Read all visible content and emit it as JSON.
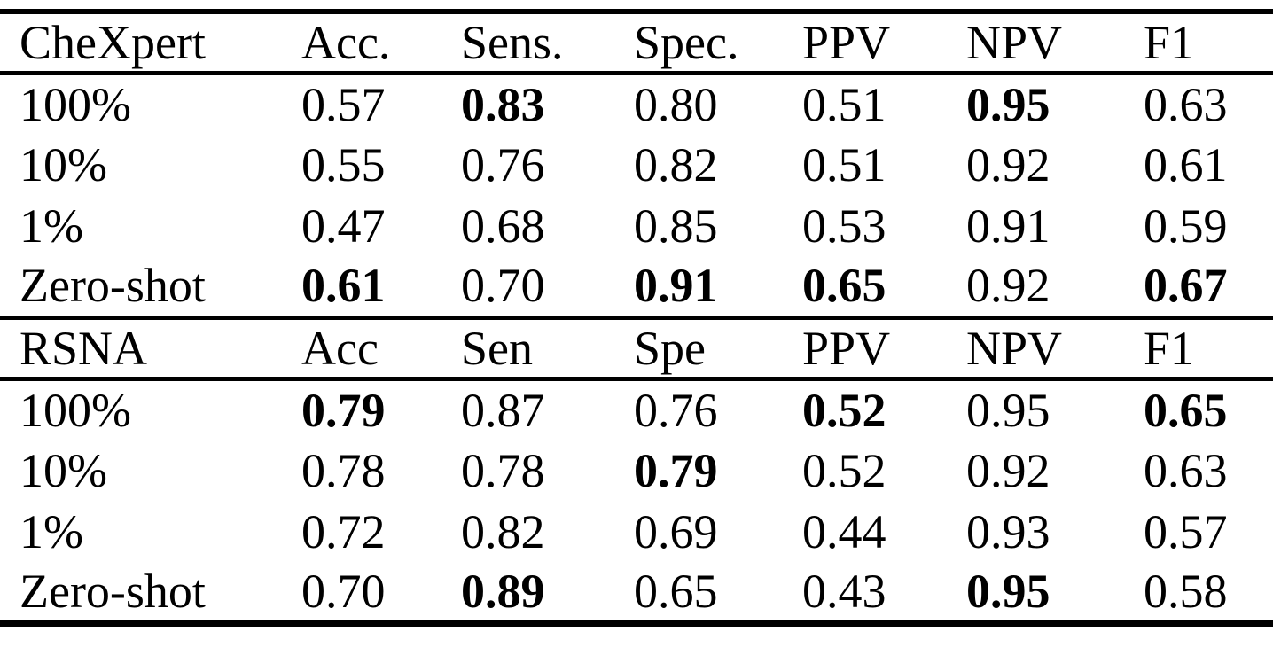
{
  "table": {
    "sections": [
      {
        "id": "chexpert",
        "headers": [
          "CheXpert",
          "Acc.",
          "Sens.",
          "Spec.",
          "PPV",
          "NPV",
          "F1"
        ],
        "rows": [
          {
            "label": "100%",
            "values": [
              "0.57",
              "0.83",
              "0.80",
              "0.51",
              "0.95",
              "0.63"
            ],
            "bold": [
              false,
              true,
              false,
              false,
              true,
              false
            ]
          },
          {
            "label": "10%",
            "values": [
              "0.55",
              "0.76",
              "0.82",
              "0.51",
              "0.92",
              "0.61"
            ],
            "bold": [
              false,
              false,
              false,
              false,
              false,
              false
            ]
          },
          {
            "label": "1%",
            "values": [
              "0.47",
              "0.68",
              "0.85",
              "0.53",
              "0.91",
              "0.59"
            ],
            "bold": [
              false,
              false,
              false,
              false,
              false,
              false
            ]
          },
          {
            "label": "Zero-shot",
            "values": [
              "0.61",
              "0.70",
              "0.91",
              "0.65",
              "0.92",
              "0.67"
            ],
            "bold": [
              true,
              false,
              true,
              true,
              false,
              true
            ]
          }
        ]
      },
      {
        "id": "rsna",
        "headers": [
          "RSNA",
          "Acc",
          "Sen",
          "Spe",
          "PPV",
          "NPV",
          "F1"
        ],
        "rows": [
          {
            "label": "100%",
            "values": [
              "0.79",
              "0.87",
              "0.76",
              "0.52",
              "0.95",
              "0.65"
            ],
            "bold": [
              true,
              false,
              false,
              true,
              false,
              true
            ]
          },
          {
            "label": "10%",
            "values": [
              "0.78",
              "0.78",
              "0.79",
              "0.52",
              "0.92",
              "0.63"
            ],
            "bold": [
              false,
              false,
              true,
              false,
              false,
              false
            ]
          },
          {
            "label": "1%",
            "values": [
              "0.72",
              "0.82",
              "0.69",
              "0.44",
              "0.93",
              "0.57"
            ],
            "bold": [
              false,
              false,
              false,
              false,
              false,
              false
            ]
          },
          {
            "label": "Zero-shot",
            "values": [
              "0.70",
              "0.89",
              "0.65",
              "0.43",
              "0.95",
              "0.58"
            ],
            "bold": [
              false,
              true,
              false,
              false,
              true,
              false
            ]
          }
        ]
      }
    ]
  },
  "colors": {
    "text": "#000000",
    "background": "#ffffff",
    "rule": "#000000"
  }
}
